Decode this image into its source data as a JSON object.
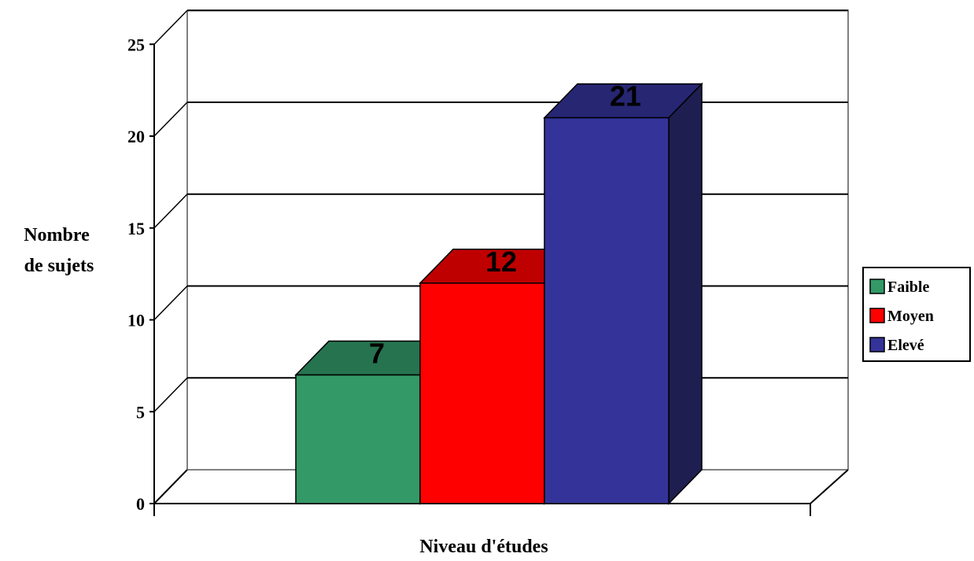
{
  "chart_data": {
    "type": "bar",
    "categories": [
      "Faible",
      "Moyen",
      "Elevé"
    ],
    "values": [
      7,
      12,
      21
    ],
    "data_labels": [
      "7",
      "12",
      "21"
    ],
    "xlabel": "Niveau d'études",
    "ylabel_lines": [
      "Nombre",
      "de sujets"
    ],
    "ylim": [
      0,
      25
    ],
    "yticks": [
      0,
      5,
      10,
      15,
      20,
      25
    ],
    "grid": true,
    "three_d": true,
    "legend": {
      "position": "right",
      "entries": [
        "Faible",
        "Moyen",
        "Elevé"
      ]
    },
    "colors": {
      "Faible": {
        "front": "#339966",
        "top": "#267350",
        "side": "#1c5a3c"
      },
      "Moyen": {
        "front": "#ff0000",
        "top": "#bf0000",
        "side": "#990000"
      },
      "Elevé": {
        "front": "#333399",
        "top": "#262673",
        "side": "#1e1e50"
      }
    }
  }
}
